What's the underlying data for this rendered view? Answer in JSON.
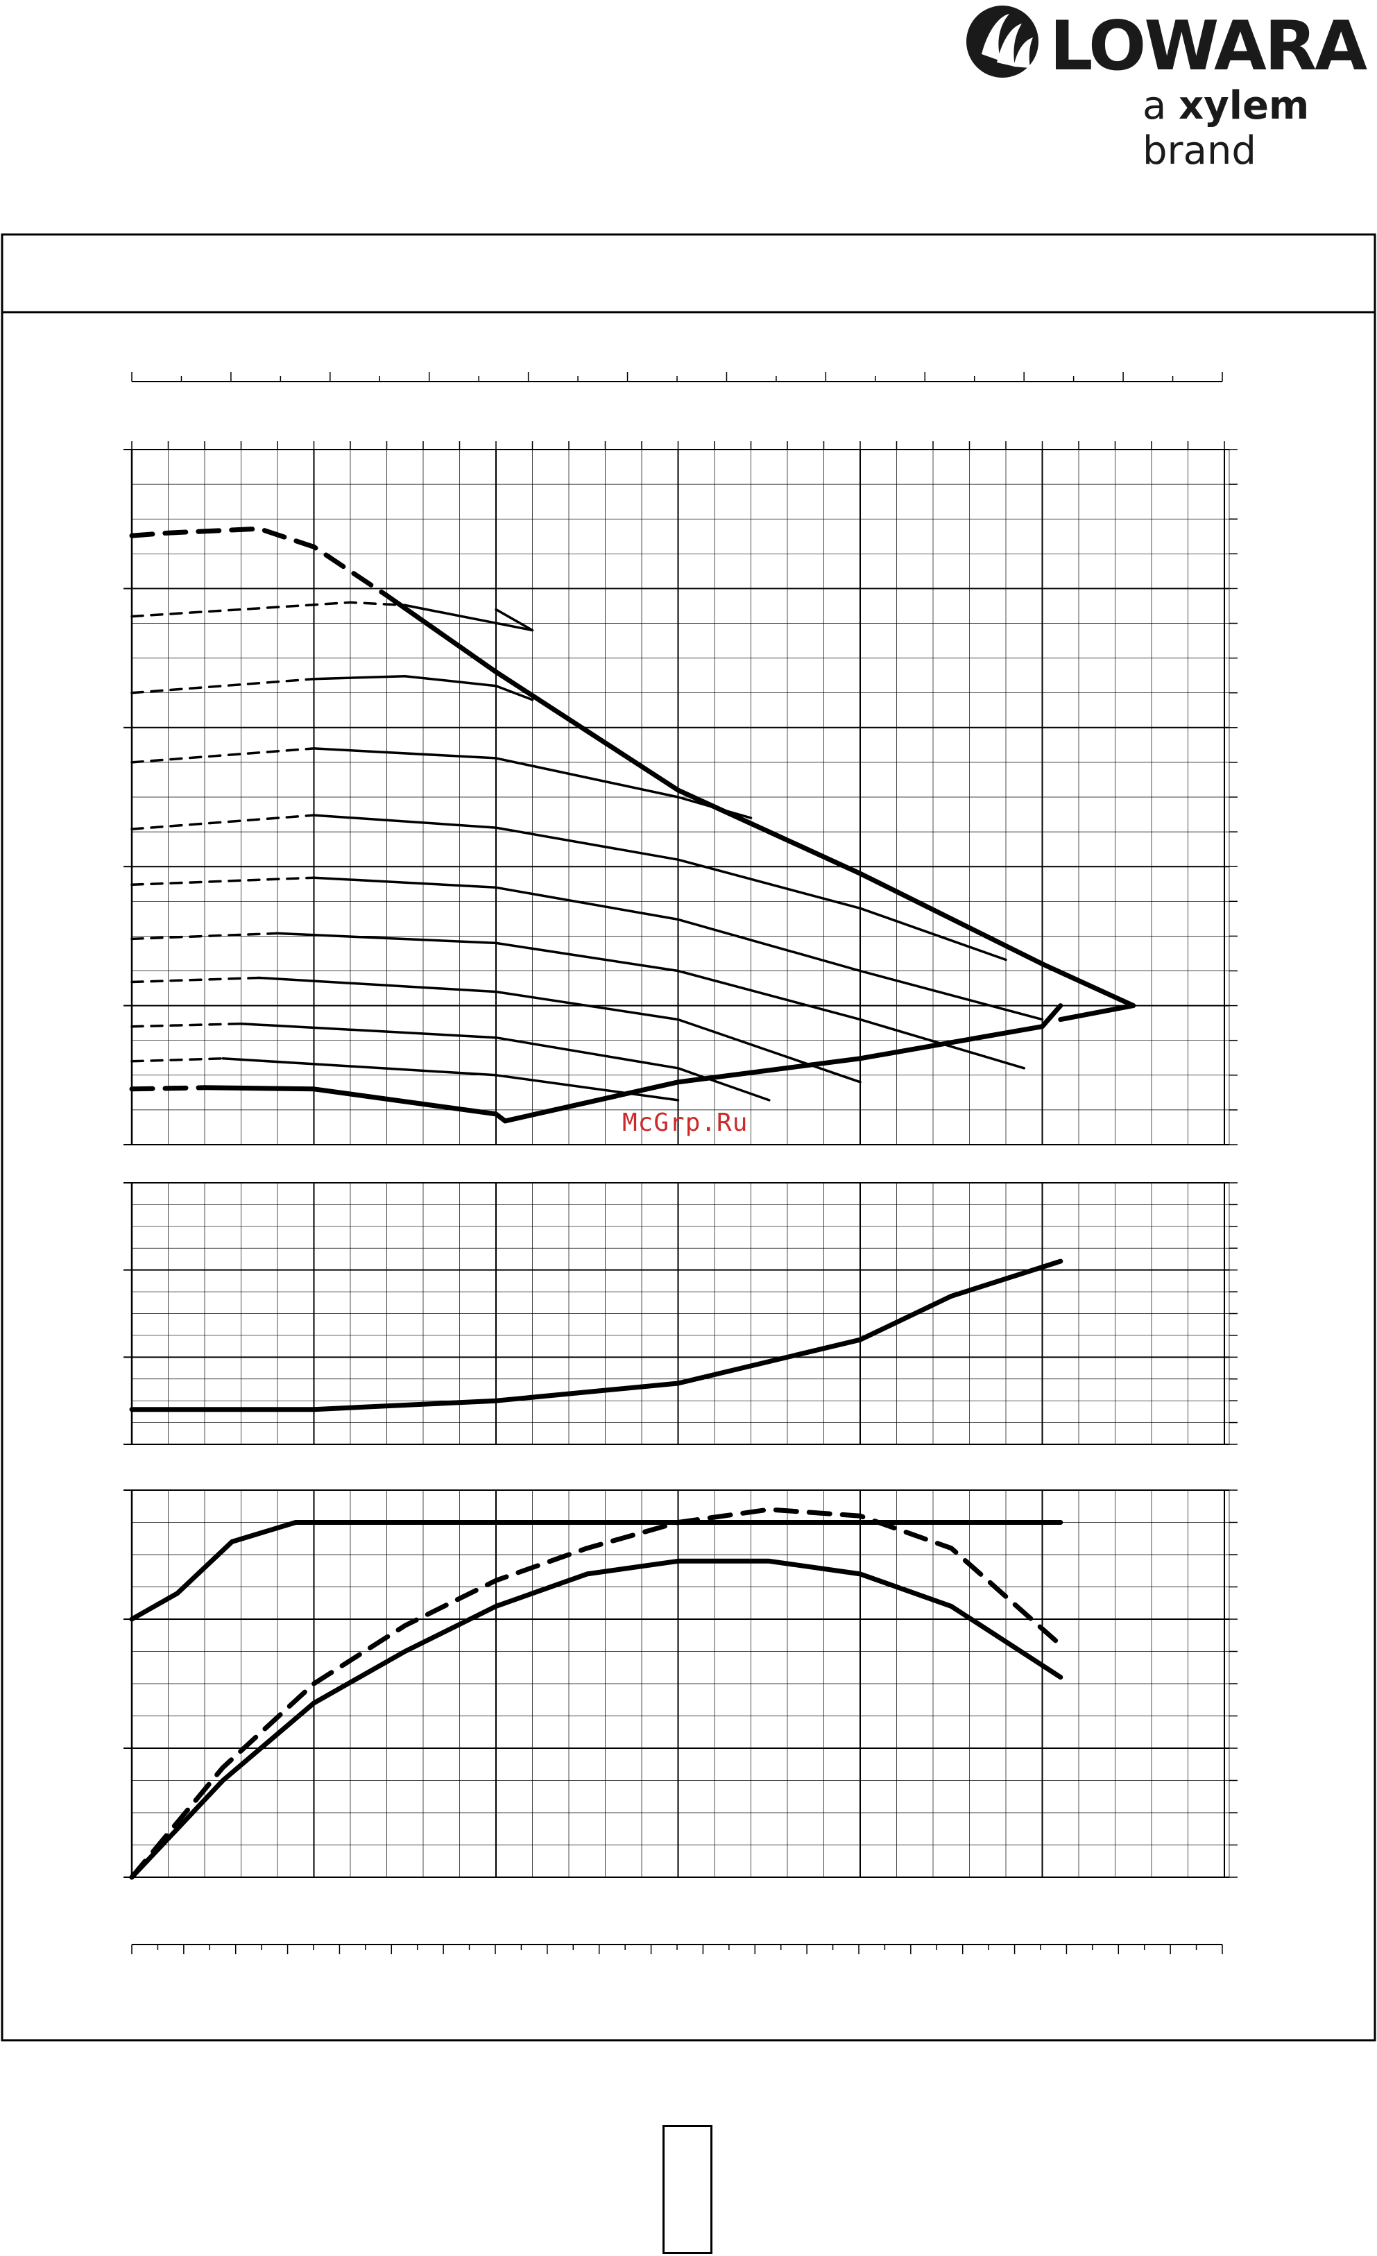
{
  "brand": {
    "name": "LOWARA",
    "tagline_prefix": "a ",
    "tagline_strong": "xylem",
    "tagline_suffix": " brand"
  },
  "watermark": "McGrp.Ru",
  "chart_data": [
    {
      "type": "line",
      "panel": "head",
      "x": [
        0,
        1,
        2,
        3,
        4,
        5,
        6
      ],
      "ylim": [
        0,
        5
      ],
      "series": [
        {
          "style": "dashed-thick",
          "x": [
            0,
            0.2,
            0.7,
            1.0,
            1.4
          ],
          "y": [
            4.38,
            4.4,
            4.43,
            4.3,
            3.95
          ]
        },
        {
          "style": "dashed",
          "x": [
            0,
            0.6,
            1.2,
            1.5
          ],
          "y": [
            3.8,
            3.85,
            3.9,
            3.88
          ]
        },
        {
          "style": "solid",
          "x": [
            1.5,
            2.2,
            2.0
          ],
          "y": [
            3.88,
            3.7,
            3.85
          ]
        },
        {
          "style": "dashed",
          "x": [
            0,
            0.8,
            1.0
          ],
          "y": [
            3.25,
            3.33,
            3.35
          ]
        },
        {
          "style": "solid",
          "x": [
            1.0,
            1.5,
            2.0,
            2.2
          ],
          "y": [
            3.35,
            3.37,
            3.3,
            3.2
          ]
        },
        {
          "style": "dashed",
          "x": [
            0,
            1.0
          ],
          "y": [
            2.75,
            2.85
          ]
        },
        {
          "style": "solid",
          "x": [
            1.0,
            2.0,
            3.0,
            3.4
          ],
          "y": [
            2.85,
            2.78,
            2.5,
            2.35
          ]
        },
        {
          "style": "dashed",
          "x": [
            0,
            1.0
          ],
          "y": [
            2.27,
            2.37
          ]
        },
        {
          "style": "solid",
          "x": [
            1.0,
            2.0,
            3.0,
            4.0,
            4.8
          ],
          "y": [
            2.37,
            2.28,
            2.05,
            1.7,
            1.33
          ]
        },
        {
          "style": "dashed",
          "x": [
            0,
            1.0
          ],
          "y": [
            1.87,
            1.92
          ]
        },
        {
          "style": "solid",
          "x": [
            1.0,
            2.0,
            3.0,
            4.0,
            5.0
          ],
          "y": [
            1.92,
            1.85,
            1.62,
            1.25,
            0.9
          ]
        },
        {
          "style": "dashed",
          "x": [
            0,
            0.8
          ],
          "y": [
            1.48,
            1.52
          ]
        },
        {
          "style": "solid",
          "x": [
            0.8,
            2.0,
            3.0,
            4.0,
            4.9
          ],
          "y": [
            1.52,
            1.45,
            1.25,
            0.9,
            0.55
          ]
        },
        {
          "style": "dashed",
          "x": [
            0,
            0.7
          ],
          "y": [
            1.17,
            1.2
          ]
        },
        {
          "style": "solid",
          "x": [
            0.7,
            2.0,
            3.0,
            4.0
          ],
          "y": [
            1.2,
            1.1,
            0.9,
            0.45
          ]
        },
        {
          "style": "dashed",
          "x": [
            0,
            0.6
          ],
          "y": [
            0.85,
            0.87
          ]
        },
        {
          "style": "solid",
          "x": [
            0.6,
            2.0,
            3.0,
            3.5
          ],
          "y": [
            0.87,
            0.77,
            0.55,
            0.32
          ]
        },
        {
          "style": "dashed",
          "x": [
            0,
            0.5
          ],
          "y": [
            0.6,
            0.62
          ]
        },
        {
          "style": "solid",
          "x": [
            0.5,
            2.0,
            3.0
          ],
          "y": [
            0.62,
            0.5,
            0.32
          ]
        },
        {
          "style": "dashed-thick",
          "x": [
            0,
            0.4
          ],
          "y": [
            0.4,
            0.41
          ]
        },
        {
          "style": "solid-thick",
          "x": [
            0.4,
            1.0,
            2.0,
            2.05
          ],
          "y": [
            0.41,
            0.4,
            0.22,
            0.17
          ]
        },
        {
          "style": "solid-thick",
          "x": [
            1.4,
            2.0,
            3.0,
            4.0,
            5.0,
            5.5,
            5.1
          ],
          "y": [
            3.95,
            3.4,
            2.55,
            1.95,
            1.3,
            1.0,
            0.9
          ]
        },
        {
          "style": "solid-thick",
          "x": [
            2.05,
            3.0,
            4.0,
            5.0,
            5.1
          ],
          "y": [
            0.17,
            0.45,
            0.62,
            0.85,
            1.0
          ]
        }
      ]
    },
    {
      "type": "line",
      "panel": "power",
      "ylim": [
        0,
        3
      ],
      "series": [
        {
          "style": "solid-thick",
          "x": [
            0,
            1.0,
            2.0,
            3.0,
            4.0,
            4.5,
            5.1
          ],
          "y": [
            0.4,
            0.4,
            0.5,
            0.7,
            1.2,
            1.7,
            2.1
          ]
        }
      ]
    },
    {
      "type": "line",
      "panel": "efficiency",
      "ylim": [
        0,
        3
      ],
      "series": [
        {
          "style": "solid-thick",
          "x": [
            0,
            0.25,
            0.55,
            0.9,
            1.2,
            2.0,
            3.0,
            4.0,
            5.1
          ],
          "y": [
            2.0,
            2.2,
            2.6,
            2.75,
            2.75,
            2.75,
            2.75,
            2.75,
            2.75
          ]
        },
        {
          "style": "dashed-thick",
          "x": [
            0,
            0.5,
            1.0,
            1.5,
            2.0,
            2.5,
            3.0,
            3.5,
            4.0,
            4.5,
            5.1
          ],
          "y": [
            0,
            0.85,
            1.5,
            1.95,
            2.3,
            2.55,
            2.75,
            2.85,
            2.8,
            2.55,
            1.8
          ]
        },
        {
          "style": "solid-thick",
          "x": [
            0,
            0.5,
            1.0,
            1.5,
            2.0,
            2.5,
            3.0,
            3.5,
            4.0,
            4.5,
            5.1
          ],
          "y": [
            0,
            0.75,
            1.35,
            1.75,
            2.1,
            2.35,
            2.45,
            2.45,
            2.35,
            2.1,
            1.55
          ]
        }
      ]
    }
  ]
}
